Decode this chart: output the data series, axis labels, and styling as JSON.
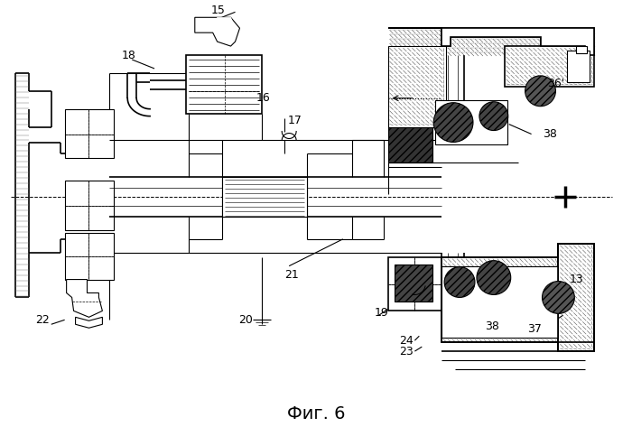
{
  "caption": "Фиг. 6",
  "caption_fontsize": 14,
  "bg_color": "#ffffff",
  "line_color": "#000000",
  "fig_width": 7.0,
  "fig_height": 4.73,
  "dpi": 100
}
